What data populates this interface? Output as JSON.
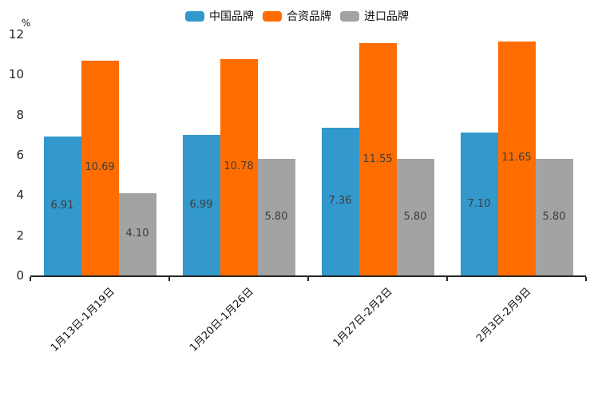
{
  "chart_data": {
    "type": "bar",
    "title": "",
    "unit": "%",
    "categories": [
      "1月13日-1月19日",
      "1月20日-1月26日",
      "1月27日-2月2日",
      "2月3日-2月9日"
    ],
    "series": [
      {
        "key": "china-brand",
        "name": "中国品牌",
        "color": "#3398CC",
        "values": [
          6.91,
          6.99,
          7.36,
          7.1
        ]
      },
      {
        "key": "joint-venture-brand",
        "name": "合资品牌",
        "color": "#FF6D00",
        "values": [
          10.69,
          10.78,
          11.55,
          11.65
        ]
      },
      {
        "key": "import-brand",
        "name": "进口品牌",
        "color": "#A3A3A3",
        "values": [
          4.1,
          5.8,
          5.8,
          5.8
        ]
      }
    ],
    "y_ticks": [
      0,
      2,
      4,
      6,
      8,
      10,
      12
    ],
    "ylim": [
      0,
      12
    ],
    "legend_position": "top",
    "grid": false,
    "value_label_style": "inside-center, 2 decimals",
    "x_label_rotation_deg": 45
  }
}
